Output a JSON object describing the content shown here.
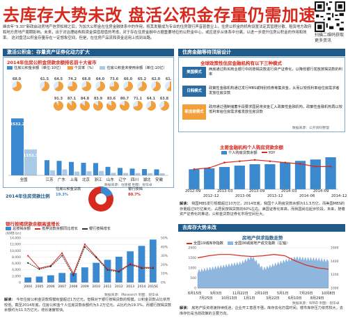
{
  "headline": "去库存大势未改 盘活公积金存量仍需加速",
  "qr_caption": "扫描二维码获取更多资讯",
  "intro": "继去年“9.30”新政启动房地产信贷松绑之后，为加大公积金在住房金融体系中的作用，将其发展成为专业的住房银行声音甚嚣尘上。住房公积金的机构设置法定其管理分散、租赁地方政府和地方房地产周期影响。未来，出于对治理结构和资金保值增值的考虑，对于存在住房金融中占据重要地位的公积金中心，或应逐步从体系中分离，以进一步提升住房公积金的作用和效率。",
  "intro2": "这对盘活公积金存量存在一定想象空间，但是，在住房产品流和资金运用上找到出路。",
  "byline": "21世纪经济报道记者 林红 编辑 谭琼飞 郭瀚 金晓 华明 修辉",
  "left_section": {
    "title": "激活公积金：存量资产证券化动力扩大",
    "chart1_title": "2014年住房公积金贷款余额排名前十大省市",
    "chart1_units": [
      "住房公积金余额（单位:10亿）",
      "个贷率（%）",
      "住房公积金未使用余额（单位:10亿）"
    ],
    "chart1_source": "数据来源：住建部 制图：倪华卓",
    "chart2_title": "2014年住房贷款比例",
    "chart2_legend": [
      "住房公积金贷款",
      "银行按揭"
    ],
    "chart2_values": [
      "19.3%",
      "80.7%"
    ],
    "chart3_title": "银行按揭贷款余额高速增长",
    "chart3_legend": [
      "总按揭余额",
      "抵押贷款余额同比增长",
      "银行按揭增长"
    ],
    "chart3_ylabel": "(RMB bn)",
    "chart3_source": "数据来源：iResearch 制图：倪华卓",
    "note_label": "解读：",
    "note": "今年住房公积金贷款规模有望超过1万亿元，但相对于银行按揭贷款的规模，公积金贷款占比依然较低。截至2014年底，住房公积金个人住房贷款余额约为3.2万亿元，占比约为19.3%，而银行按揭贷款余额约为11.5万亿元，增长速度较快。",
    "note_source": "数据来源：WIND 制图：倪华卓"
  },
  "right_section": {
    "title": "住房金融等待顶层设计",
    "subtitle": "全球政策性住房金融机构有以下三种模式",
    "models": [
      {
        "label": "美国模式",
        "text": "两房通过购买商业银行中的按揭贷款进行资产证券化，以降低银行发放按揭贷款的利率"
      },
      {
        "label": "日韩模式",
        "text": "政策性金融机构通过发行MBS或特别债券筹集资金，从而以较低利率给住房需求者发放住房贷款"
      },
      {
        "label": "新加坡模式",
        "text": "政府通过强制储蓄手段要求国民将资金汇入政策性金融机构，政策性金融机构再以较低利率给住房需求者发放住房贷款"
      }
    ],
    "models_source": "数据来源：公开资料整理",
    "chart4_title": "主要金融机构个人购房贷款余额",
    "chart4_legend": [
      "个人购房贷款余额",
      "YOY"
    ],
    "chart4_xlabels": [
      "2012–09",
      "2013–03",
      "2013–09",
      "2014–03",
      "2014–09",
      "2012–12",
      "2013–06",
      "2013–12",
      "2014–06",
      "2014–12"
    ],
    "chart4_note_label": "解读：",
    "chart4_note": "我国MBS发行规模超过10万亿，2014年底，我国个人购房贷款余额为11.5万亿，而美国MBS的存量超过9万亿美元，占居民按揭贷款的60%左右。美国证券化率高，而我国尚在起步阶段。未来，随着资产证券化的推进，公积金贷款证券化市场空间巨大。",
    "sub_title2": "去库存大势未改",
    "chart5_title": "房地产供求指数走势",
    "chart5_legend": [
      "全国19城库存指数",
      "全国36城房地产成交指数（左轴）"
    ],
    "chart5_xlabels": [
      "6月15日",
      "7月25日",
      "9月3日",
      "10月13日",
      "11月22日",
      "1月1日",
      "2月10日",
      "3月22日",
      "5月1日",
      "6月10日",
      "7月20日",
      "8月29日",
      "10月8日"
    ],
    "chart5_note_label": "解读：",
    "chart5_note": "房地产投资增速持续低迷，企业开工意愿不强，库存去化仍需时间。楼市库存压力依然较大，去库存仍是当前政策的主要方向。",
    "chart5_source": "数据来源：WIND 制图：倪华卓"
  },
  "chart_data": [
    {
      "type": "bar",
      "title": "2014年住房公积金贷款余额排名前十大省市",
      "categories": [
        "全国",
        "江苏",
        "广东",
        "上海",
        "北京",
        "浙江",
        "山东",
        "辽宁",
        "四川",
        "湖北",
        "安徽"
      ],
      "series": [
        {
          "name": "住房公积金余额（单位:10亿）",
          "values": [
            2532.2,
            241,
            230,
            213,
            200,
            196,
            135,
            118,
            107,
            100,
            95
          ]
        },
        {
          "name": "住房公积金未使用余额（单位:10亿）",
          "values": [
            1152.3,
            80,
            95,
            60,
            65,
            70,
            40,
            38,
            36,
            35,
            33
          ]
        }
      ],
      "pie_ratios": [
        68.0,
        61.5,
        64.5,
        74.2,
        68.8,
        64.0,
        73.6,
        66.0,
        65.2,
        62.0,
        61.4
      ],
      "pie_ratios_row2": [
        91.3,
        87.1,
        84.8,
        83.9,
        83.6,
        80.7,
        71.1,
        64.1,
        63.8
      ]
    },
    {
      "type": "pie",
      "title": "2014年住房贷款比例",
      "categories": [
        "住房公积金贷款",
        "银行按揭"
      ],
      "values": [
        19.3,
        80.7
      ]
    },
    {
      "type": "bar",
      "title": "银行按揭贷款余额高速增长",
      "categories": [
        "2004",
        "2005",
        "2006",
        "2007",
        "2008",
        "2009",
        "2010",
        "2011",
        "2012",
        "2013",
        "2014",
        "2015E"
      ],
      "series": [
        {
          "name": "总按揭余额",
          "values": [
            1600,
            1850,
            2270,
            3000,
            3000,
            4760,
            6200,
            7140,
            8100,
            9800,
            11520,
            13500
          ]
        },
        {
          "name": "抵押贷款余额同比增长",
          "values": [
            30,
            16,
            19,
            33,
            10,
            43,
            29,
            15,
            13,
            21,
            17,
            17
          ]
        },
        {
          "name": "银行按揭增长",
          "values": [
            22,
            15,
            18,
            30,
            8,
            40,
            28,
            14,
            12,
            20,
            16,
            16
          ]
        }
      ],
      "ylim": [
        0,
        14000
      ]
    },
    {
      "type": "line",
      "title": "主要金融机构个人购房贷款余额",
      "x": [
        "2012-09",
        "2012-12",
        "2013-03",
        "2013-06",
        "2013-09",
        "2013-12",
        "2014-03",
        "2014-06",
        "2014-09",
        "2014-12"
      ],
      "series": [
        {
          "name": "个人购房贷款余额",
          "values": [
            7.2,
            7.5,
            8.0,
            8.5,
            9.0,
            9.0,
            9.6,
            10.2,
            10.7,
            11.5
          ]
        },
        {
          "name": "YOY",
          "values": [
            15,
            16,
            20,
            21,
            22,
            21,
            20,
            19,
            17,
            17
          ]
        }
      ]
    },
    {
      "type": "area",
      "title": "房地产供求指数走势",
      "x": [
        "6月15日",
        "7月25日",
        "9月3日",
        "10月13日",
        "11月22日",
        "1月1日",
        "2月10日",
        "3月22日",
        "5月1日",
        "6月10日",
        "7月20日",
        "8月29日",
        "10月8日"
      ],
      "series": [
        {
          "name": "全国19城库存指数",
          "values": [
            1450,
            1480,
            1500,
            1500,
            1480,
            1470,
            1480,
            1500,
            1480,
            1400,
            1340,
            1300,
            1280
          ]
        },
        {
          "name": "全国36城房地产成交指数（左轴）",
          "values": [
            800,
            900,
            1000,
            1100,
            1200,
            1500,
            900,
            1100,
            1300,
            1450,
            1400,
            1380,
            1300
          ]
        }
      ]
    }
  ],
  "colors": {
    "red": "#d8291e",
    "blue": "#1f5a8a",
    "orange": "#f2a03d",
    "green": "#5aa63d",
    "lightblue": "#3b8ad0"
  }
}
